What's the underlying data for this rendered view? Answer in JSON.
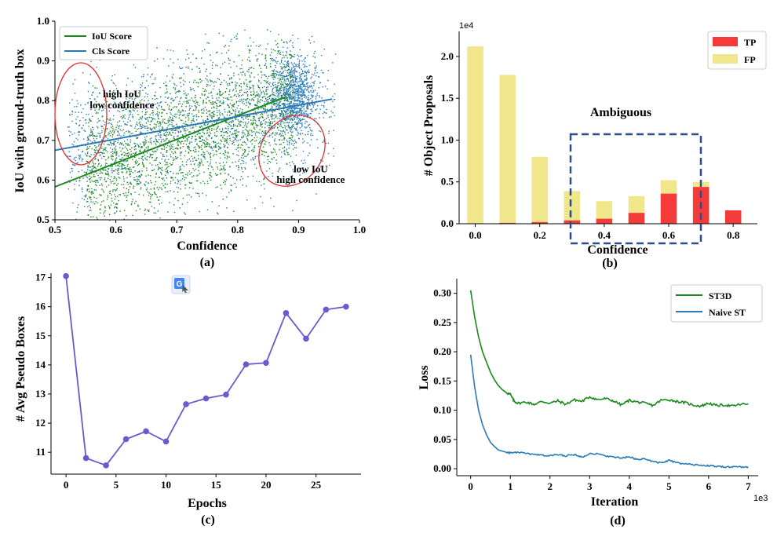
{
  "colors": {
    "iou": "#1a8a1a",
    "cls": "#2a7ab8",
    "tp": "#f53a3a",
    "fp": "#f0e68c",
    "ambiguous_box": "#2b4f8c",
    "ellipse": "#e03030",
    "line_c": "#6a5acd",
    "st3d": "#1a8a1a",
    "naive": "#2a7ab8"
  },
  "icons": {
    "translate": "google-translate-icon"
  },
  "chart_data": [
    {
      "type": "scatter",
      "panel_label": "(a)",
      "xlabel": "Confidence",
      "ylabel": "IoU with ground-truth box",
      "xlim": [
        0.5,
        1.0
      ],
      "ylim": [
        0.5,
        1.0
      ],
      "xticks": [
        "0.5",
        "0.6",
        "0.7",
        "0.8",
        "0.9",
        "1.0"
      ],
      "yticks": [
        "0.5",
        "0.6",
        "0.7",
        "0.8",
        "0.9",
        "1.0"
      ],
      "legend": [
        "IoU Score",
        "Cls Score"
      ],
      "legend_position": "top-left",
      "series": [
        {
          "name": "IoU Score",
          "fit_line": {
            "x": [
              0.5,
              0.88
            ],
            "y": [
              0.583,
              0.81
            ]
          }
        },
        {
          "name": "Cls Score",
          "fit_line": {
            "x": [
              0.5,
              0.955
            ],
            "y": [
              0.675,
              0.804
            ]
          }
        }
      ],
      "annotations": [
        {
          "text": "high IoU",
          "x": 0.61,
          "y": 0.808
        },
        {
          "text": "low confidence",
          "x": 0.61,
          "y": 0.781
        },
        {
          "text": "low IoU",
          "x": 0.92,
          "y": 0.62
        },
        {
          "text": "high confidence",
          "x": 0.92,
          "y": 0.593
        }
      ]
    },
    {
      "type": "bar",
      "panel_label": "(b)",
      "xlabel": "Confidence",
      "ylabel": "# Object Proposals",
      "scale_label": "1e4",
      "xticks": [
        "0.0",
        "0.2",
        "0.4",
        "0.6",
        "0.8"
      ],
      "yticks": [
        "0.0",
        "0.5",
        "1.0",
        "1.5",
        "2.0"
      ],
      "xlim": [
        -0.05,
        0.875
      ],
      "ylim": [
        0,
        2.3
      ],
      "x": [
        0.0,
        0.1,
        0.2,
        0.3,
        0.4,
        0.5,
        0.6,
        0.7,
        0.8
      ],
      "series": [
        {
          "name": "TP",
          "values": [
            0.0,
            0.01,
            0.02,
            0.04,
            0.06,
            0.13,
            0.36,
            0.44,
            0.16
          ]
        },
        {
          "name": "FP",
          "values": [
            2.12,
            1.77,
            0.78,
            0.35,
            0.21,
            0.2,
            0.16,
            0.06,
            0.0
          ]
        }
      ],
      "legend_position": "top-right",
      "annotation": "Ambiguous"
    },
    {
      "type": "line",
      "panel_label": "(c)",
      "xlabel": "Epochs",
      "ylabel": "# Avg Pseudo Boxes",
      "xticks": [
        "0",
        "5",
        "10",
        "15",
        "20",
        "25"
      ],
      "yticks": [
        "11",
        "12",
        "13",
        "14",
        "15",
        "16",
        "17"
      ],
      "xlim": [
        -1.5,
        29.5
      ],
      "ylim": [
        10.25,
        17.15
      ],
      "x": [
        0,
        2,
        4,
        6,
        8,
        10,
        12,
        14,
        16,
        18,
        20,
        22,
        24,
        26,
        28
      ],
      "values": [
        17.05,
        10.8,
        10.55,
        11.45,
        11.72,
        11.37,
        12.65,
        12.85,
        12.98,
        14.02,
        14.07,
        15.78,
        14.9,
        15.9,
        16.0
      ]
    },
    {
      "type": "line",
      "panel_label": "(d)",
      "xlabel": "Iteration",
      "ylabel": "Loss",
      "scale_label": "1e3",
      "xticks": [
        "0",
        "1",
        "2",
        "3",
        "4",
        "5",
        "6",
        "7"
      ],
      "yticks": [
        "0.00",
        "0.05",
        "0.10",
        "0.15",
        "0.20",
        "0.25",
        "0.30"
      ],
      "xlim": [
        -0.35,
        7.25
      ],
      "ylim": [
        -0.012,
        0.325
      ],
      "legend_position": "top-right",
      "series": [
        {
          "name": "ST3D",
          "x": [
            0,
            0.1,
            0.2,
            0.3,
            0.4,
            0.5,
            0.6,
            0.7,
            0.8,
            0.9,
            1.0,
            1.1,
            1.2,
            1.4,
            1.6,
            1.8,
            2.0,
            2.2,
            2.4,
            2.6,
            2.8,
            3.0,
            3.2,
            3.4,
            3.6,
            3.8,
            4.0,
            4.2,
            4.4,
            4.6,
            4.8,
            5.0,
            5.2,
            5.4,
            5.6,
            5.8,
            6.0,
            6.2,
            6.4,
            6.6,
            6.8,
            7.0
          ],
          "values": [
            0.305,
            0.26,
            0.225,
            0.2,
            0.182,
            0.165,
            0.152,
            0.142,
            0.135,
            0.13,
            0.127,
            0.115,
            0.112,
            0.114,
            0.11,
            0.115,
            0.112,
            0.116,
            0.11,
            0.118,
            0.115,
            0.123,
            0.118,
            0.12,
            0.116,
            0.109,
            0.117,
            0.114,
            0.112,
            0.108,
            0.117,
            0.118,
            0.115,
            0.113,
            0.109,
            0.107,
            0.112,
            0.108,
            0.109,
            0.107,
            0.11,
            0.111
          ]
        },
        {
          "name": "Naive ST",
          "x": [
            0,
            0.1,
            0.2,
            0.3,
            0.4,
            0.5,
            0.6,
            0.7,
            0.8,
            0.9,
            1.0,
            1.2,
            1.4,
            1.6,
            1.8,
            2.0,
            2.2,
            2.4,
            2.6,
            2.8,
            3.0,
            3.2,
            3.4,
            3.6,
            3.8,
            4.0,
            4.2,
            4.4,
            4.6,
            4.8,
            5.0,
            5.2,
            5.4,
            5.6,
            5.8,
            6.0,
            6.2,
            6.4,
            6.6,
            6.8,
            7.0
          ],
          "values": [
            0.195,
            0.14,
            0.1,
            0.075,
            0.058,
            0.045,
            0.038,
            0.032,
            0.03,
            0.028,
            0.027,
            0.028,
            0.026,
            0.024,
            0.023,
            0.022,
            0.024,
            0.022,
            0.024,
            0.02,
            0.026,
            0.025,
            0.022,
            0.02,
            0.018,
            0.02,
            0.016,
            0.017,
            0.012,
            0.01,
            0.014,
            0.01,
            0.008,
            0.007,
            0.006,
            0.005,
            0.004,
            0.003,
            0.003,
            0.003,
            0.003
          ]
        }
      ]
    }
  ]
}
